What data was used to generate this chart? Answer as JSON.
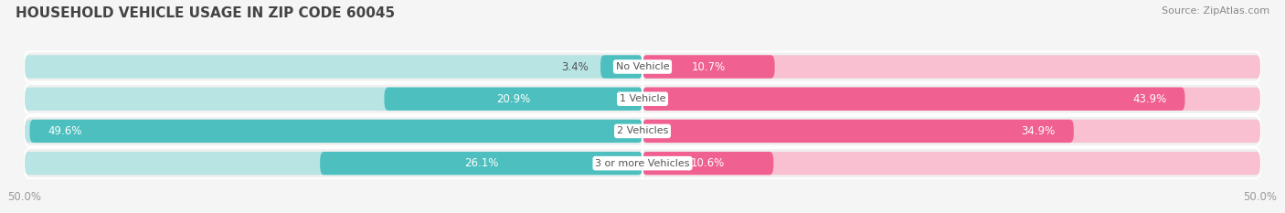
{
  "title": "HOUSEHOLD VEHICLE USAGE IN ZIP CODE 60045",
  "source": "Source: ZipAtlas.com",
  "categories": [
    "No Vehicle",
    "1 Vehicle",
    "2 Vehicles",
    "3 or more Vehicles"
  ],
  "owner_values": [
    3.4,
    20.9,
    49.6,
    26.1
  ],
  "renter_values": [
    10.7,
    43.9,
    34.9,
    10.6
  ],
  "owner_color": "#4dbfbf",
  "renter_color": "#f06090",
  "owner_color_light": "#b8e4e4",
  "renter_color_light": "#f8c0d0",
  "bar_bg_color": "#f0f0f0",
  "bar_separator_color": "#ffffff",
  "title_fontsize": 11,
  "source_fontsize": 8,
  "label_fontsize": 8.5,
  "category_fontsize": 8,
  "legend_fontsize": 8.5,
  "background_color": "#f5f5f5",
  "text_color": "#555555",
  "tick_color": "#999999"
}
